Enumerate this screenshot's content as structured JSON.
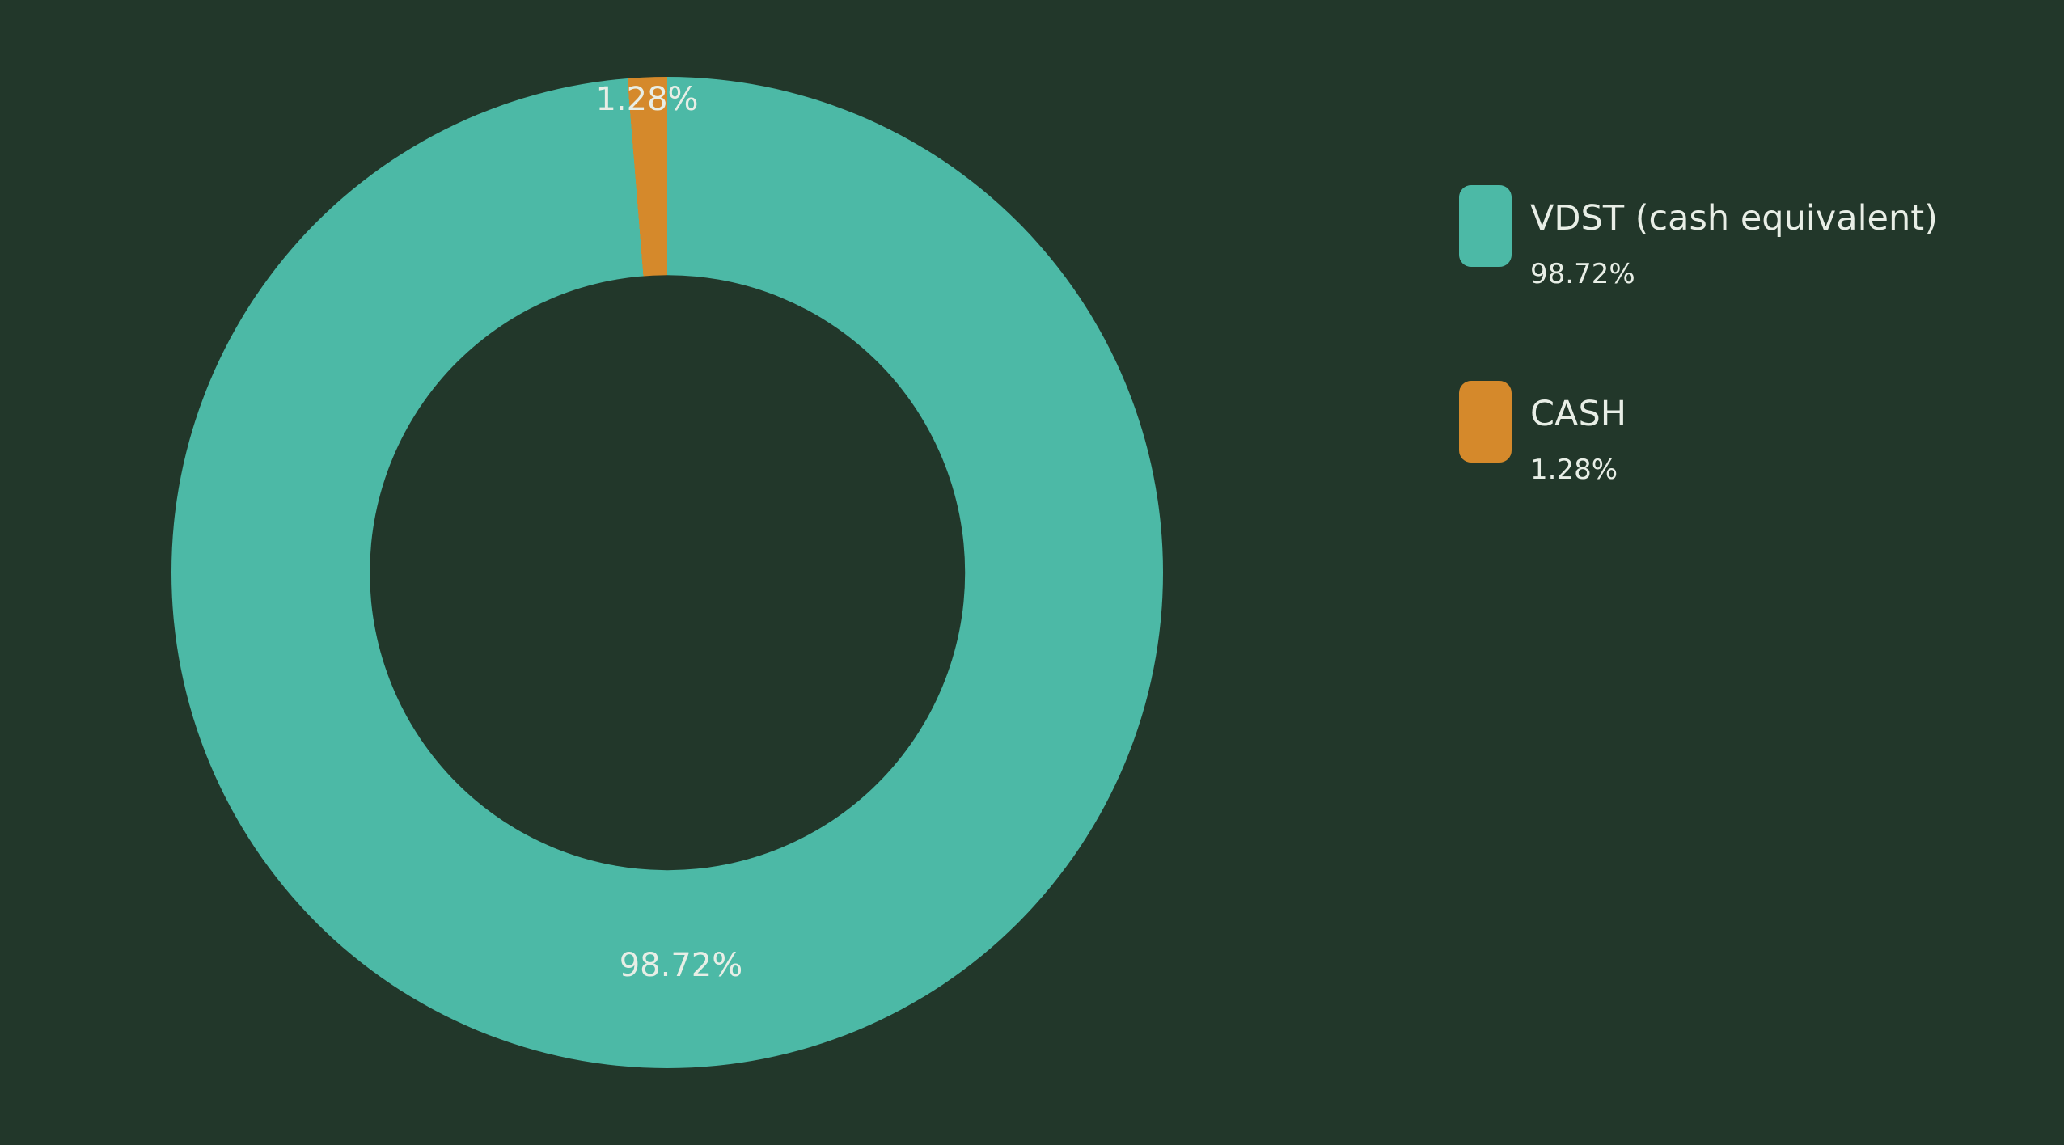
{
  "page": {
    "background": "#22372A",
    "text_color": "#E8EEE6"
  },
  "chart_data": {
    "type": "pie",
    "subtype": "donut",
    "title": "",
    "hole_ratio": 0.6,
    "rotation_deg": 0,
    "direction": "clockwise",
    "legend_position": "right",
    "labels_shown": "percent",
    "slices": [
      {
        "label": "VDST (cash equivalent)",
        "value": 98.72,
        "pct_text": "98.72%",
        "color": "#4CB9A6"
      },
      {
        "label": "CASH",
        "value": 1.28,
        "pct_text": "1.28%",
        "color": "#D5892B"
      }
    ]
  }
}
